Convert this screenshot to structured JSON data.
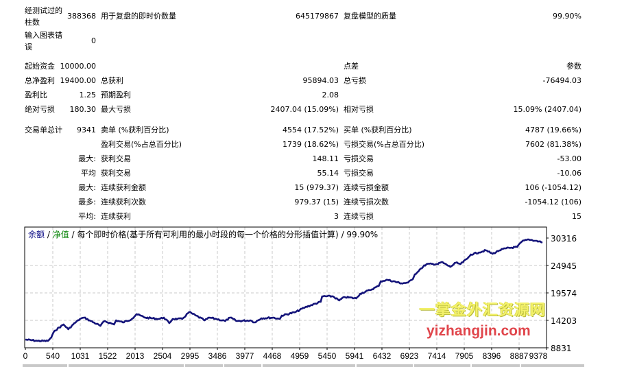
{
  "summary": {
    "rows": [
      {
        "c": [
          "经测试过的\n柱数",
          "388368",
          "用于复盘的即时价数量",
          "645179867",
          "复盘模型的质量",
          "99.90%"
        ]
      },
      {
        "c": [
          "输入图表错\n误",
          "0",
          "",
          "",
          "",
          ""
        ]
      },
      {
        "c": [
          "起始资金",
          "10000.00",
          "",
          "",
          "点差",
          "参数"
        ]
      },
      {
        "c": [
          "总净盈利",
          "19400.00",
          "总获利",
          "95894.03",
          "总亏损",
          "-76494.03"
        ]
      },
      {
        "c": [
          "盈利比",
          "1.25",
          "预期盈利",
          "2.08",
          "",
          ""
        ]
      },
      {
        "c": [
          "绝对亏损",
          "180.30",
          "最大亏损",
          "2407.04 (15.09%)",
          "相对亏损",
          "15.09% (2407.04)"
        ]
      },
      {
        "c": [
          "交易单总计",
          "9341",
          "卖单 (%获利百分比)",
          "4554 (17.52%)",
          "买单 (%获利百分比)",
          "4787 (19.66%)"
        ]
      },
      {
        "c": [
          "",
          "",
          "盈利交易(%占总百分比)",
          "1739 (18.62%)",
          "亏损交易(%占总百分比)",
          "7602 (81.38%)"
        ]
      },
      {
        "c": [
          "",
          "最大:",
          "获利交易",
          "148.11",
          "亏损交易",
          "-53.00"
        ]
      },
      {
        "c": [
          "",
          "平均",
          "获利交易",
          "55.14",
          "亏损交易",
          "-10.06"
        ]
      },
      {
        "c": [
          "",
          "最大:",
          "连续获利金额",
          "15 (979.37)",
          "连续亏损金额",
          "106 (-1054.12)"
        ]
      },
      {
        "c": [
          "",
          "最多:",
          "连续获利次数",
          "979.37 (15)",
          "连续亏损次数",
          "-1054.12 (106)"
        ]
      },
      {
        "c": [
          "",
          "平均:",
          "连续获利",
          "3",
          "连续亏损",
          "15"
        ]
      }
    ]
  },
  "chart_data": {
    "type": "line",
    "title_parts": {
      "balance": "余额",
      "sep1": " / ",
      "equity": "净值",
      "sep2": " / ",
      "model": "每个即时价格(基于所有可利用的最小时段的每一个价格的分形插值计算)",
      "sep3": " / ",
      "quality": "99.90%"
    },
    "x_ticks": [
      "0",
      "540",
      "1031",
      "1522",
      "2013",
      "2504",
      "2995",
      "3486",
      "3977",
      "4468",
      "4959",
      "5450",
      "5941",
      "6432",
      "6923",
      "7414",
      "7905",
      "8396",
      "8887",
      "9378"
    ],
    "y_ticks": [
      "30316",
      "24945",
      "19574",
      "14203",
      "8831"
    ],
    "xlim": [
      0,
      9378
    ],
    "ylim": [
      8831,
      30316
    ],
    "grid": true,
    "colors": {
      "balance": "#000080",
      "equity": "#008000",
      "line": "#14147a",
      "grid": "#c8c8c8"
    },
    "series": [
      {
        "points": [
          [
            0,
            10443
          ],
          [
            221,
            10174
          ],
          [
            405,
            10174
          ],
          [
            466,
            10846
          ],
          [
            528,
            12188
          ],
          [
            687,
            13397
          ],
          [
            773,
            12457
          ],
          [
            859,
            13397
          ],
          [
            982,
            14472
          ],
          [
            1056,
            14740
          ],
          [
            1178,
            14069
          ],
          [
            1350,
            13129
          ],
          [
            1424,
            14069
          ],
          [
            1596,
            13397
          ],
          [
            1633,
            14203
          ],
          [
            1755,
            13800
          ],
          [
            1915,
            14472
          ],
          [
            2001,
            15412
          ],
          [
            2160,
            14740
          ],
          [
            2406,
            14472
          ],
          [
            2492,
            14740
          ],
          [
            2590,
            13666
          ],
          [
            2651,
            14472
          ],
          [
            2823,
            14472
          ],
          [
            2946,
            15815
          ],
          [
            3069,
            15143
          ],
          [
            3228,
            14203
          ],
          [
            3314,
            14740
          ],
          [
            3437,
            14472
          ],
          [
            3597,
            14069
          ],
          [
            3683,
            14740
          ],
          [
            3805,
            14069
          ],
          [
            4051,
            14203
          ],
          [
            4124,
            13800
          ],
          [
            4247,
            14606
          ],
          [
            4456,
            14740
          ],
          [
            4579,
            14472
          ],
          [
            4615,
            15143
          ],
          [
            4861,
            15815
          ],
          [
            5033,
            16755
          ],
          [
            5315,
            17829
          ],
          [
            5340,
            18904
          ],
          [
            5536,
            18904
          ],
          [
            5647,
            18098
          ],
          [
            5745,
            18769
          ],
          [
            5953,
            18500
          ],
          [
            6027,
            19441
          ],
          [
            6199,
            20112
          ],
          [
            6358,
            20918
          ],
          [
            6395,
            21858
          ],
          [
            6518,
            22127
          ],
          [
            6764,
            21455
          ],
          [
            6886,
            21590
          ],
          [
            6972,
            22261
          ],
          [
            7009,
            23201
          ],
          [
            7095,
            24141
          ],
          [
            7218,
            25216
          ],
          [
            7426,
            25216
          ],
          [
            7488,
            25618
          ],
          [
            7647,
            24678
          ],
          [
            7745,
            25484
          ],
          [
            7831,
            25216
          ],
          [
            7954,
            26290
          ],
          [
            8016,
            27096
          ],
          [
            8163,
            27499
          ],
          [
            8286,
            27902
          ],
          [
            8408,
            27230
          ],
          [
            8531,
            27902
          ],
          [
            8654,
            28304
          ],
          [
            8850,
            28573
          ],
          [
            8936,
            29647
          ],
          [
            9059,
            30050
          ],
          [
            9182,
            29782
          ],
          [
            9305,
            29513
          ]
        ]
      }
    ]
  },
  "watermark": {
    "line1": "一掌金外汇资源网",
    "line2": "yizhangjin.com"
  }
}
